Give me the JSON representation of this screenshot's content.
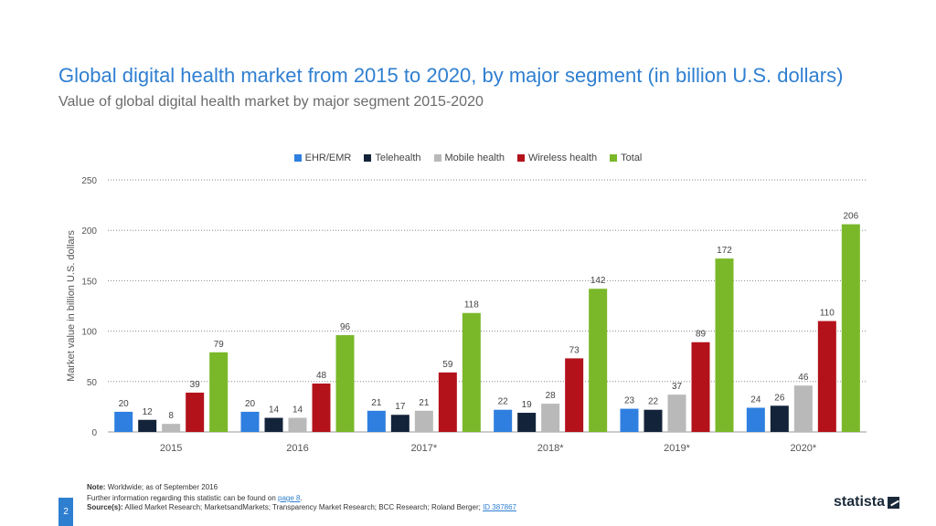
{
  "page": {
    "page_number": "2",
    "logo_text": "statista"
  },
  "footer": {
    "note_label": "Note:",
    "note_text": "Worldwide; as of September 2016",
    "info_text": "Further information regarding this statistic can be found on",
    "info_link": "page 8",
    "info_end": ".",
    "source_label": "Source(s):",
    "source_text": "Allied Market Research; MarketsandMarkets; Transparency Market Research; BCC Research; Roland Berger;",
    "source_id": "ID 387867"
  },
  "chart_data": {
    "type": "bar",
    "title": "Global digital health market from 2015 to 2020, by major segment (in billion U.S. dollars)",
    "subtitle": "Value of global digital health market by major segment 2015-2020",
    "xlabel": "",
    "ylabel": "Market value in billion U.S. dollars",
    "ylim": [
      0,
      250
    ],
    "yticks": [
      0,
      50,
      100,
      150,
      200,
      250
    ],
    "grid": true,
    "legend_position": "top-center",
    "categories": [
      "2015",
      "2016",
      "2017*",
      "2018*",
      "2019*",
      "2020*"
    ],
    "series": [
      {
        "name": "EHR/EMR",
        "color": "#2e7fe0",
        "values": [
          20,
          20,
          21,
          22,
          23,
          24
        ]
      },
      {
        "name": "Telehealth",
        "color": "#13243a",
        "values": [
          12,
          14,
          17,
          19,
          22,
          26
        ]
      },
      {
        "name": "Mobile health",
        "color": "#b9b9b9",
        "values": [
          8,
          14,
          21,
          28,
          37,
          46
        ]
      },
      {
        "name": "Wireless health",
        "color": "#b3121b",
        "values": [
          39,
          48,
          59,
          73,
          89,
          110
        ]
      },
      {
        "name": "Total",
        "color": "#7ab829",
        "values": [
          79,
          96,
          118,
          142,
          172,
          206
        ]
      }
    ]
  }
}
